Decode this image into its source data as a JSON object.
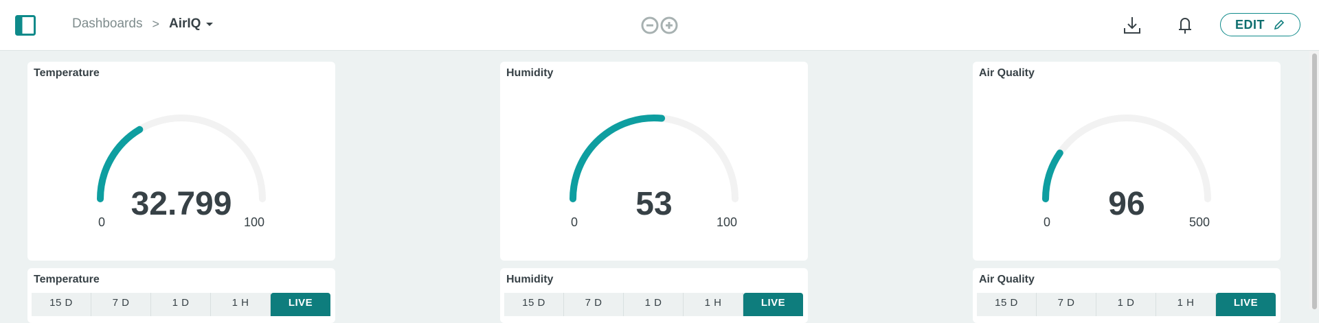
{
  "header": {
    "breadcrumb_root": "Dashboards",
    "breadcrumb_separator": ">",
    "breadcrumb_current": "AirIQ",
    "edit_label": "EDIT"
  },
  "gauges": [
    {
      "title": "Temperature",
      "value": "32.799",
      "min": "0",
      "max": "100",
      "fraction": 0.328
    },
    {
      "title": "Humidity",
      "value": "53",
      "min": "0",
      "max": "100",
      "fraction": 0.53
    },
    {
      "title": "Air Quality",
      "value": "96",
      "min": "0",
      "max": "500",
      "fraction": 0.192
    }
  ],
  "charts": [
    {
      "title": "Temperature",
      "tabs": [
        "15 D",
        "7 D",
        "1 D",
        "1 H",
        "LIVE"
      ],
      "active_tab": "LIVE"
    },
    {
      "title": "Humidity",
      "tabs": [
        "15 D",
        "7 D",
        "1 D",
        "1 H",
        "LIVE"
      ],
      "active_tab": "LIVE"
    },
    {
      "title": "Air Quality",
      "tabs": [
        "15 D",
        "7 D",
        "1 D",
        "1 H",
        "LIVE"
      ],
      "active_tab": "LIVE"
    }
  ],
  "colors": {
    "accent": "#0e9ea0",
    "track": "#f2f2f2",
    "live_tab": "#0e7d7d"
  }
}
